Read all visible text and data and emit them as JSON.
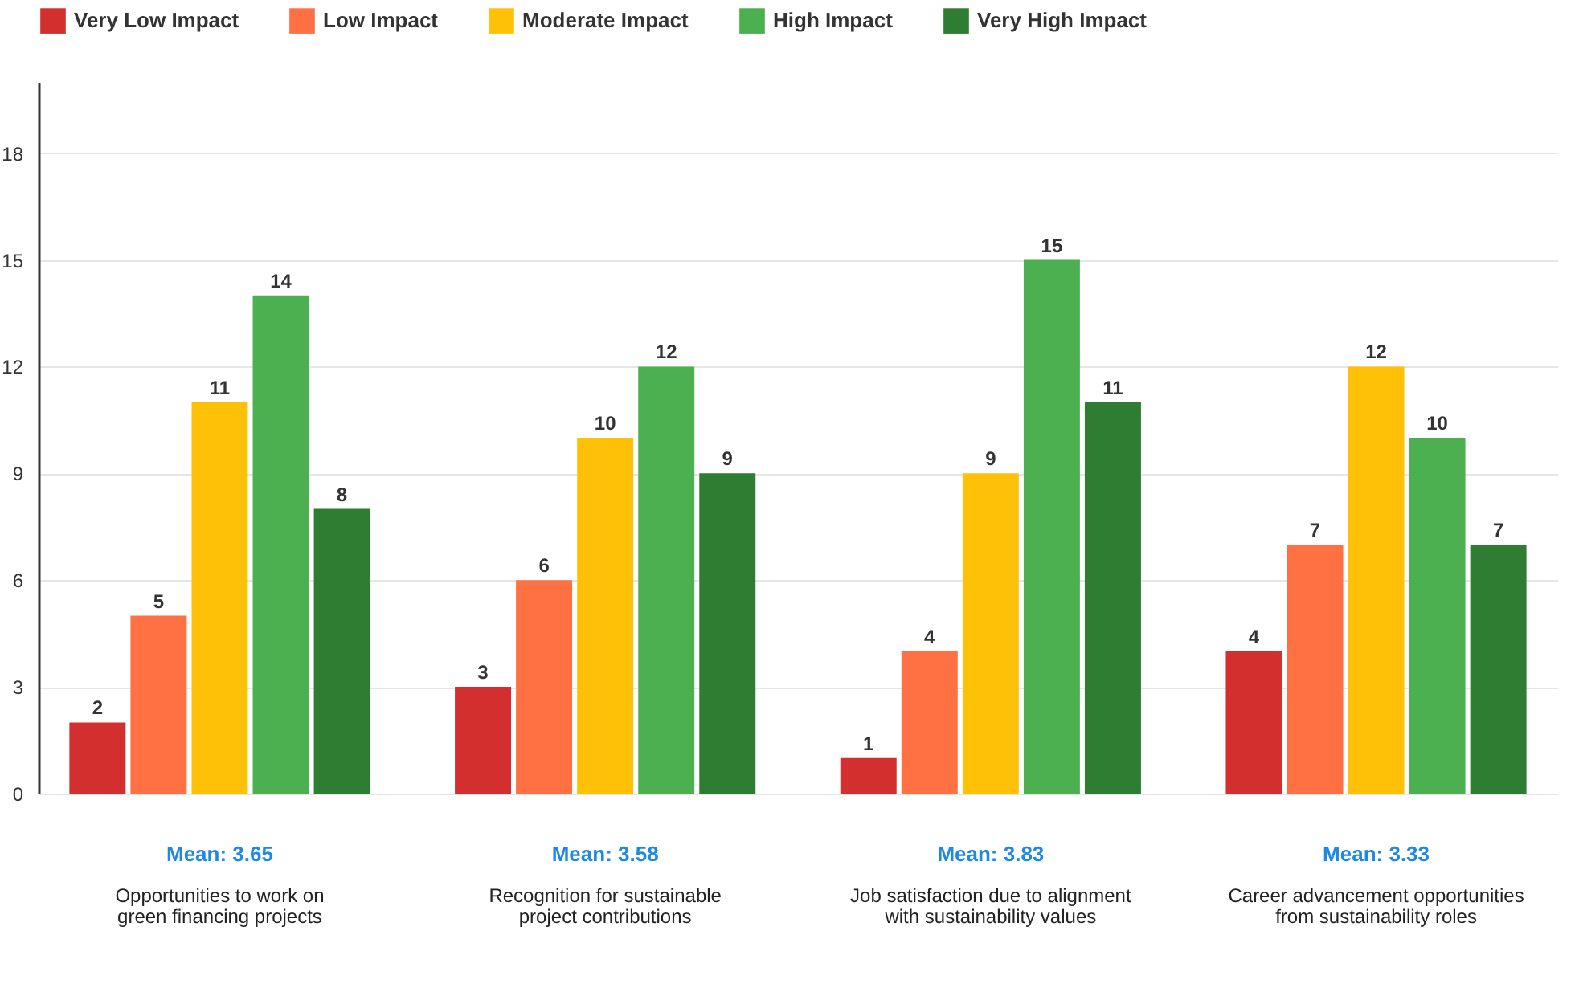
{
  "chart_data": {
    "type": "bar",
    "categories": [
      "Opportunities to work on green financing projects",
      "Recognition for sustainable project contributions",
      "Job satisfaction due to alignment with sustainability values",
      "Career advancement opportunities from sustainability roles"
    ],
    "series": [
      {
        "name": "Very Low Impact",
        "color": "#d32f2f",
        "values": [
          2,
          3,
          1,
          4
        ]
      },
      {
        "name": "Low Impact",
        "color": "#ff7043",
        "values": [
          5,
          6,
          4,
          7
        ]
      },
      {
        "name": "Moderate Impact",
        "color": "#ffc107",
        "values": [
          11,
          10,
          9,
          12
        ]
      },
      {
        "name": "High Impact",
        "color": "#4caf50",
        "values": [
          14,
          12,
          15,
          10
        ]
      },
      {
        "name": "Very High Impact",
        "color": "#2e7d32",
        "values": [
          8,
          9,
          11,
          7
        ]
      }
    ],
    "ylim": [
      0,
      20
    ],
    "yticks": [
      0,
      3,
      6,
      9,
      12,
      15,
      18
    ],
    "grid": "y",
    "legend": "top left",
    "data_labels": true,
    "annotations": [
      "Mean: 3.65",
      "Mean: 3.58",
      "Mean: 3.83",
      "Mean: 3.33"
    ]
  }
}
